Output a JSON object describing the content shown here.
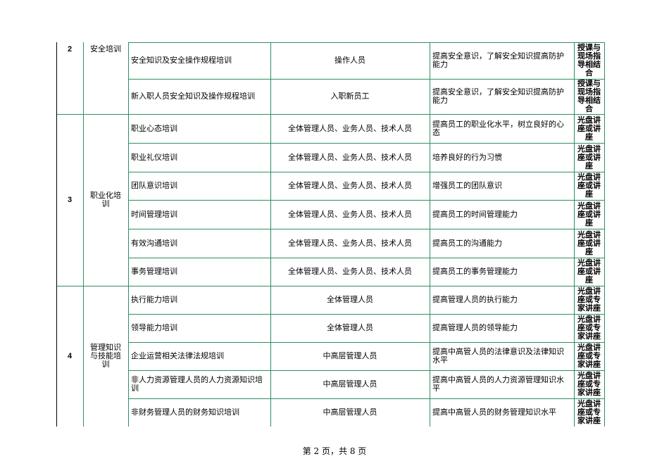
{
  "table": {
    "groups": [
      {
        "number": "2",
        "category": "安全培训",
        "rows": [
          [
            "安全知识及安全操作规程培训",
            "操作人员",
            "提高安全意识，了解安全知识提高防护能力",
            "授课与现场指导相结合"
          ],
          [
            "新入职人员安全知识及操作规程培训",
            "入职新员工",
            "提高安全意识，了解安全知识提高防护能力",
            "授课与现场指导相结合"
          ]
        ]
      },
      {
        "number": "3",
        "category": "职业化培训",
        "rows": [
          [
            "职业心态培训",
            "全体管理人员、业务人员、技术人员",
            "提高员工的职业化水平，树立良好的心态",
            "光盘讲座或讲座"
          ],
          [
            "职业礼仪培训",
            "全体管理人员、业务人员、技术人员",
            "培养良好的行为习惯",
            "光盘讲座或讲座"
          ],
          [
            "团队意识培训",
            "全体管理人员、业务人员、技术人员",
            "增强员工的团队意识",
            "光盘讲座或讲座"
          ],
          [
            "时间管理培训",
            "全体管理人员、业务人员、技术人员",
            "提高员工的时间管理能力",
            "光盘讲座或讲座"
          ],
          [
            "有效沟通培训",
            "全体管理人员、业务人员、技术人员",
            "提高员工的沟通能力",
            "光盘讲座或讲座"
          ],
          [
            "事务管理培训",
            "全体管理人员、业务人员、技术人员",
            "提高员工的事务管理能力",
            "光盘讲座或讲座"
          ]
        ]
      },
      {
        "number": "4",
        "category": "管理知识与技能培训",
        "rows": [
          [
            "执行能力培训",
            "全体管理人员",
            "提高管理人员的执行能力",
            "光盘讲座或专家讲座"
          ],
          [
            "领导能力培训",
            "全体管理人员",
            "提高管理人员的领导能力",
            "光盘讲座或专家讲座"
          ],
          [
            "企业运营相关法律法规培训",
            "中高层管理人员",
            "提高中高管人员的法律意识及法律知识水平",
            "光盘讲座或专家讲座"
          ],
          [
            "非人力资源管理人员的人力资源知识培训",
            "中高层管理人员",
            "提高中高管人员的人力资源管理知识水平",
            "光盘讲座或专家讲座"
          ],
          [
            "非财务管理人员的财务知识培训",
            "中高层管理人员",
            "提高中高管人员的财务管理知识水平",
            "光盘讲座或专家讲座"
          ]
        ]
      }
    ]
  },
  "footer": "第 2 页，共 8 页"
}
